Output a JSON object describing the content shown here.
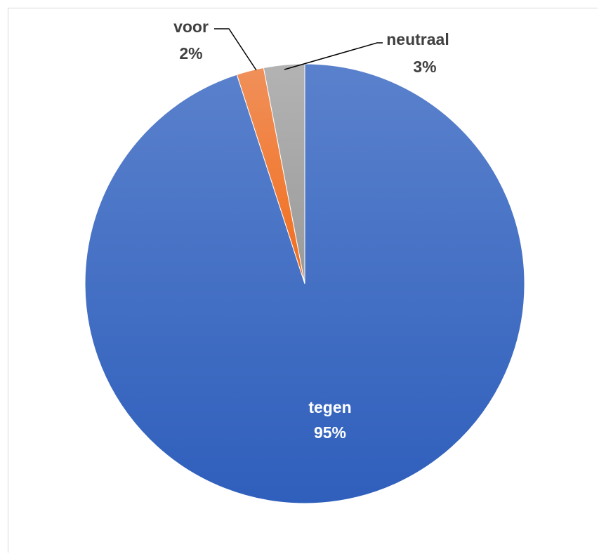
{
  "chart_data": {
    "type": "pie",
    "start_angle_deg": 0,
    "direction": "clockwise",
    "slices": [
      {
        "label": "tegen",
        "value": 95,
        "value_label": "95%",
        "color": "#4472c4"
      },
      {
        "label": "voor",
        "value": 2,
        "value_label": "2%",
        "color": "#ed7d31"
      },
      {
        "label": "neutraal",
        "value": 3,
        "value_label": "3%",
        "color": "#a5a5a5"
      }
    ],
    "legend": "none",
    "data_labels": "category and percentage"
  }
}
